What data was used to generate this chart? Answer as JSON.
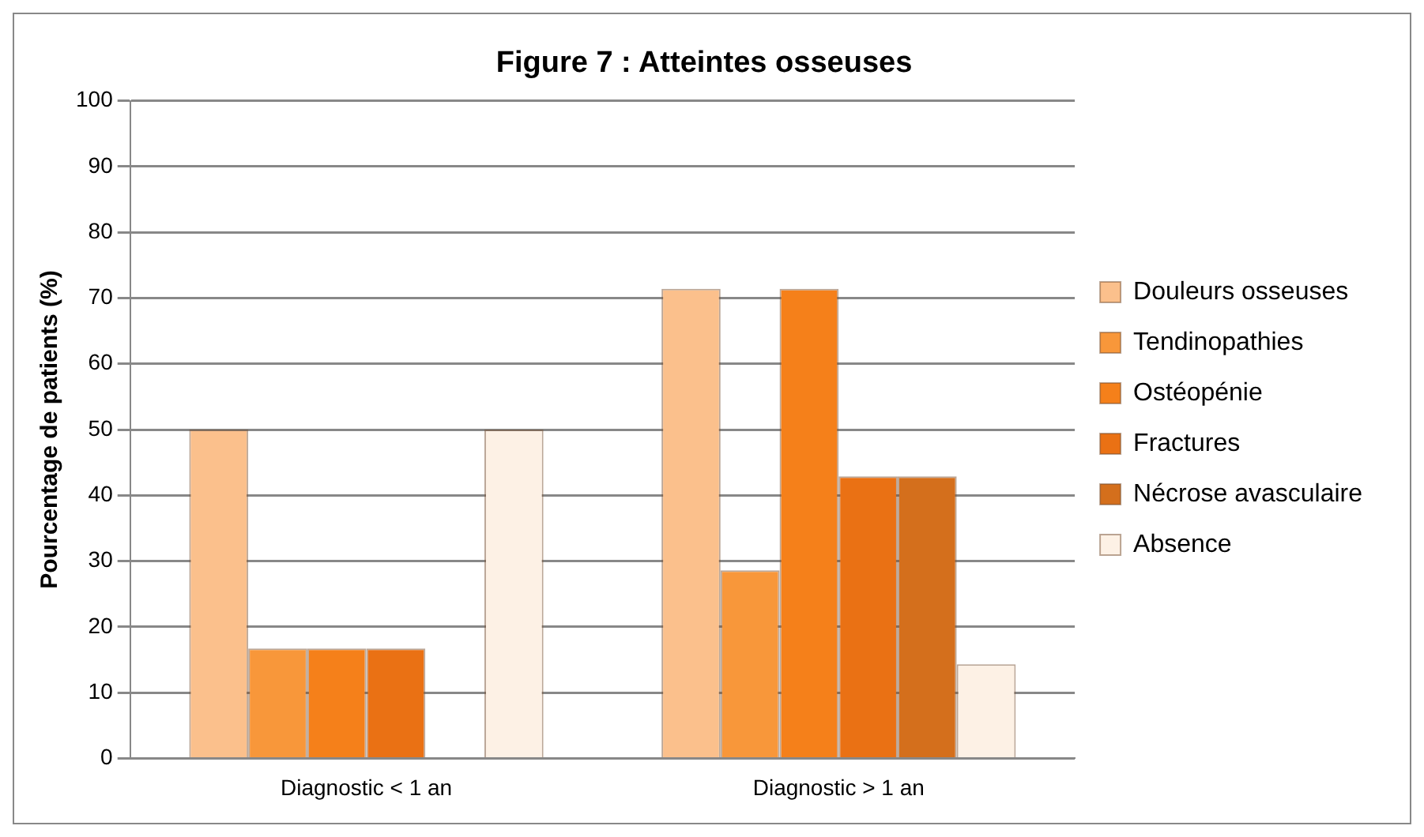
{
  "chart_data": {
    "type": "bar",
    "title": "Figure 7 : Atteintes osseuses",
    "ylabel": "Pourcentage de patients (%)",
    "categories": [
      "Diagnostic < 1 an",
      "Diagnostic > 1 an"
    ],
    "series": [
      {
        "name": "Douleurs osseuses",
        "color": "#fbc08c",
        "values": [
          50,
          71.4
        ]
      },
      {
        "name": "Tendinopathies",
        "color": "#f8973a",
        "values": [
          16.7,
          28.6
        ]
      },
      {
        "name": "Ostéopénie",
        "color": "#f5801a",
        "values": [
          16.7,
          71.4
        ]
      },
      {
        "name": "Fractures",
        "color": "#ea7114",
        "values": [
          16.7,
          42.9
        ]
      },
      {
        "name": "Nécrose avasculaire",
        "color": "#d46f1c",
        "values": [
          0,
          42.9
        ]
      },
      {
        "name": "Absence",
        "color": "#fdf1e5",
        "values": [
          50,
          14.3
        ]
      }
    ],
    "ylim": [
      0,
      100
    ],
    "yticks": [
      0,
      10,
      20,
      30,
      40,
      50,
      60,
      70,
      80,
      90,
      100
    ],
    "grid": "y",
    "legend": "right"
  }
}
